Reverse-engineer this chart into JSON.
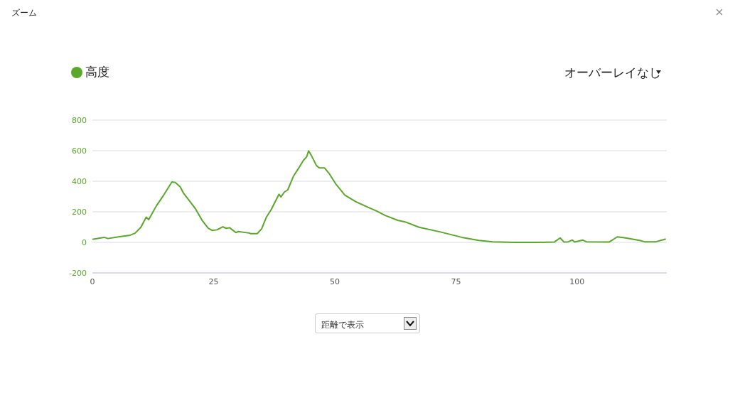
{
  "chart_data": {
    "type": "line",
    "title": "ズーム",
    "annotations": [
      "オーバーレイなし",
      "距離で表示"
    ],
    "x": [
      0,
      2.4,
      3.2,
      5.4,
      7.8,
      8.8,
      10.0,
      11.1,
      11.6,
      13.2,
      14.7,
      16.4,
      17.1,
      18.1,
      18.8,
      20.0,
      21.3,
      22.7,
      23.9,
      24.7,
      25.7,
      26.9,
      27.6,
      28.3,
      29.6,
      30.1,
      32.3,
      32.7,
      34.0,
      34.9,
      35.9,
      36.9,
      38.5,
      38.9,
      39.6,
      40.3,
      41.5,
      42.5,
      43.5,
      44.2,
      44.6,
      45.2,
      46.2,
      46.8,
      47.9,
      48.9,
      50.3,
      52.1,
      54.3,
      56.2,
      58.7,
      60.4,
      63.0,
      64.5,
      67.4,
      71.8,
      76.2,
      79.7,
      82.6,
      87.0,
      91.9,
      95.3,
      96.5,
      97.3,
      98.2,
      99.0,
      99.5,
      101.2,
      101.9,
      106.6,
      108.3,
      110.0,
      112.9,
      113.9,
      116.3,
      118.3
    ],
    "series": [
      {
        "name": "高度",
        "color": "#5aa829",
        "values": [
          20,
          33,
          25,
          36,
          47,
          60,
          99,
          165,
          148,
          239,
          309,
          395,
          392,
          364,
          322,
          273,
          218,
          141,
          92,
          78,
          82,
          102,
          92,
          96,
          64,
          71,
          61,
          57,
          57,
          88,
          165,
          215,
          315,
          297,
          329,
          343,
          434,
          483,
          535,
          560,
          599,
          567,
          504,
          487,
          487,
          448,
          378,
          309,
          267,
          239,
          204,
          176,
          144,
          134,
          99,
          68,
          33,
          13,
          4,
          0,
          0,
          2,
          29,
          2,
          4,
          15,
          2,
          15,
          4,
          2,
          36,
          29,
          13,
          4,
          4,
          22
        ]
      }
    ],
    "xlim": [
      0,
      118.5
    ],
    "ylim": [
      -200,
      800
    ],
    "xticks": [
      0,
      25,
      50,
      75,
      100
    ],
    "yticks": [
      -200,
      0,
      200,
      400,
      600,
      800
    ],
    "grid": "y",
    "legend": "top left",
    "marker": "none"
  }
}
